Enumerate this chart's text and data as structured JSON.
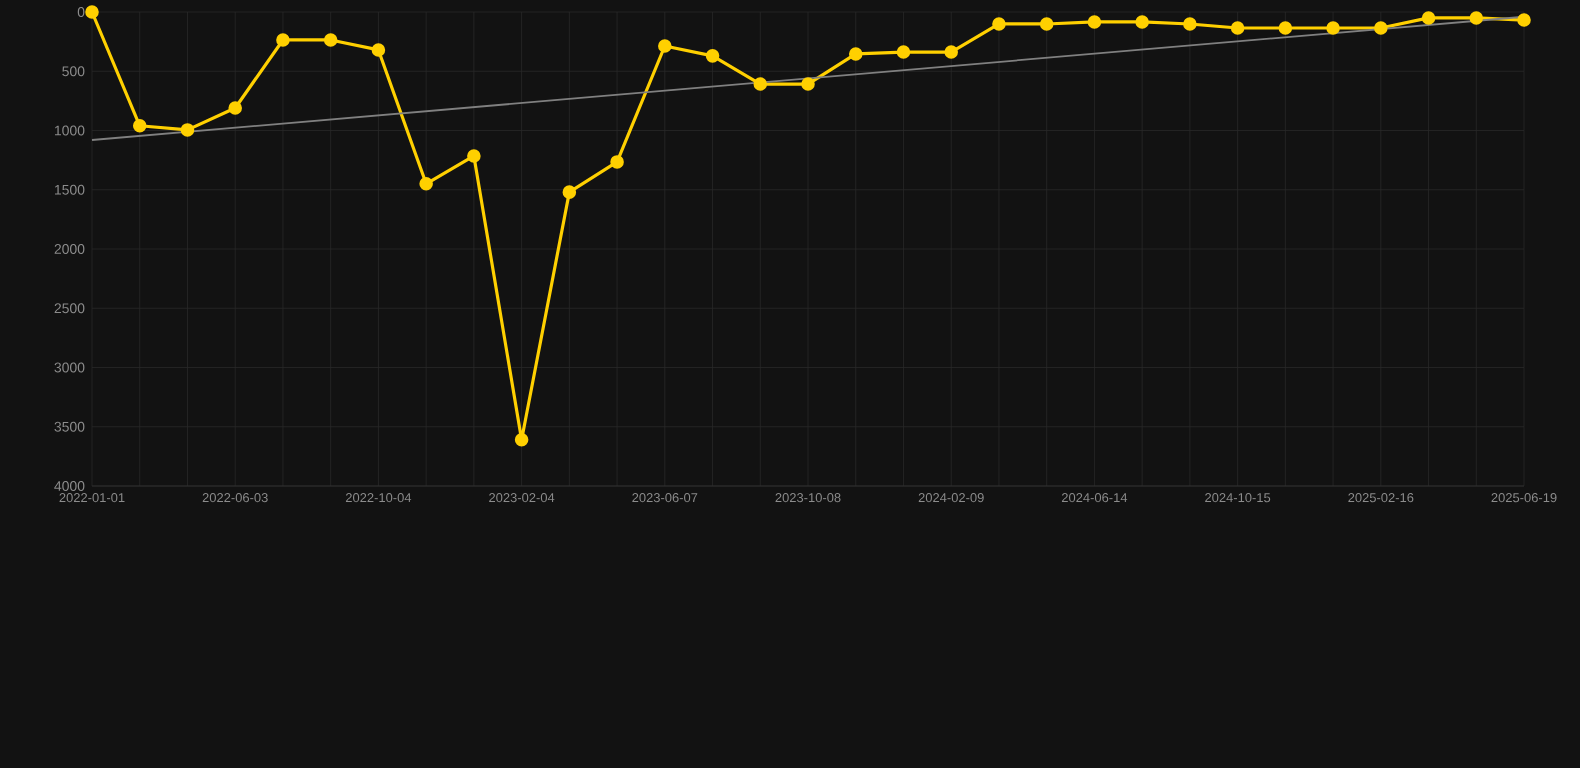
{
  "chart_data": {
    "type": "line",
    "categories": [
      "2022-01-01",
      null,
      null,
      "2022-06-03",
      null,
      null,
      "2022-10-04",
      null,
      null,
      "2023-02-04",
      null,
      null,
      "2023-06-07",
      null,
      null,
      "2023-10-08",
      null,
      null,
      "2024-02-09",
      null,
      null,
      "2024-06-14",
      null,
      null,
      "2024-10-15",
      null,
      null,
      "2025-02-16",
      null,
      null,
      "2025-06-19"
    ],
    "series": [
      {
        "color": "#ffd000",
        "values": [
          0,
          960,
          995,
          810,
          236,
          236,
          320,
          1450,
          1215,
          3610,
          1520,
          1265,
          287,
          370,
          608,
          608,
          354,
          338,
          338,
          101,
          101,
          84,
          84,
          101,
          135,
          135,
          135,
          135,
          50,
          50,
          68
        ]
      },
      {
        "type": "line",
        "color": "#808080",
        "marker": "none",
        "values": [
          1080,
          null,
          null,
          null,
          null,
          null,
          null,
          null,
          null,
          null,
          null,
          null,
          null,
          null,
          null,
          null,
          null,
          null,
          null,
          null,
          null,
          null,
          null,
          null,
          null,
          null,
          null,
          null,
          null,
          null,
          40
        ]
      }
    ],
    "ylim": [
      4000,
      0
    ],
    "yticks": [
      0,
      500,
      1000,
      1500,
      2000,
      2500,
      3000,
      3500,
      4000
    ],
    "grid": true,
    "marker": "circle",
    "line_style": "solid"
  }
}
